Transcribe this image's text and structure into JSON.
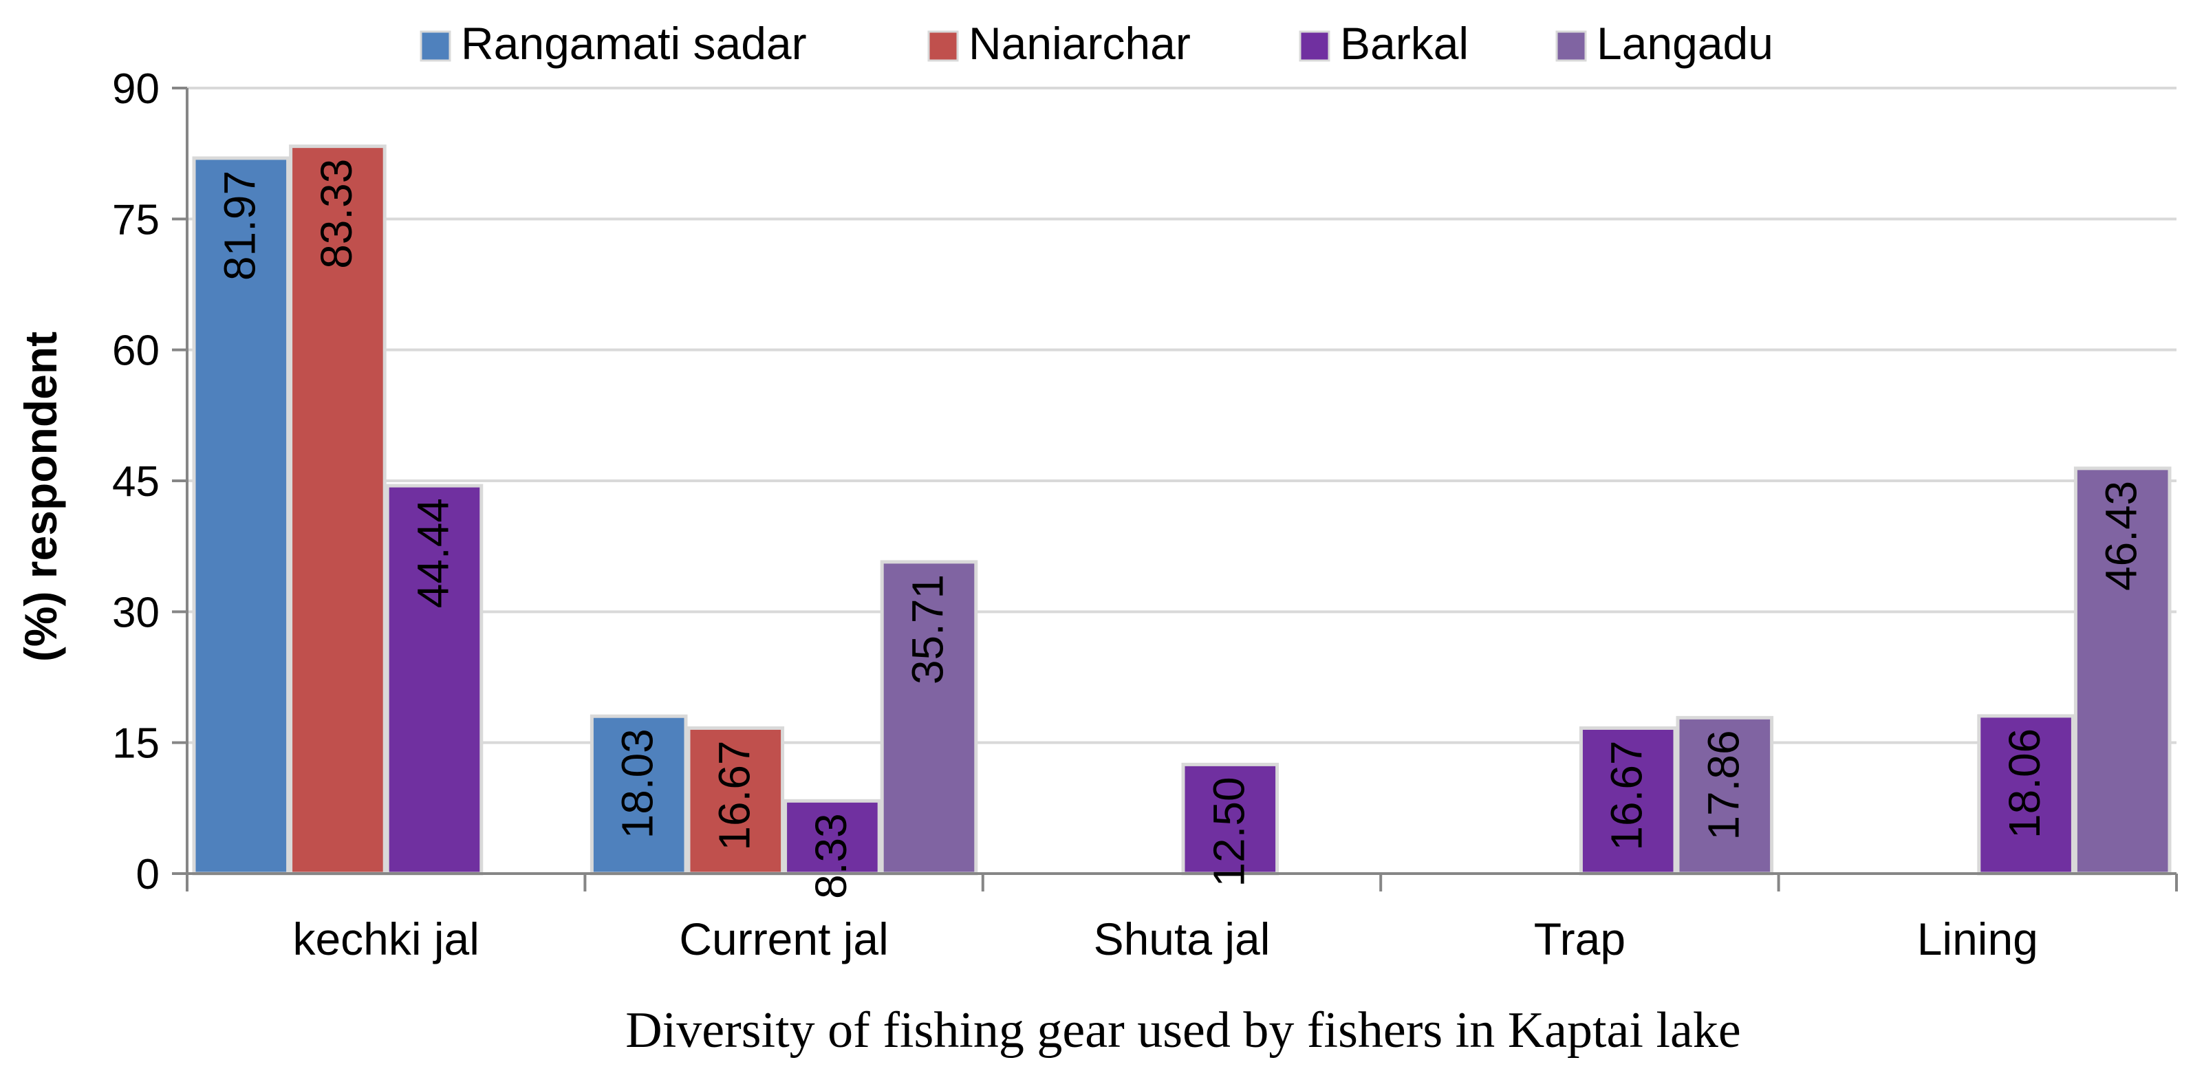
{
  "chart_data": {
    "type": "bar",
    "categories": [
      "kechki jal",
      "Current jal",
      "Shuta jal",
      "Trap",
      "Lining"
    ],
    "series": [
      {
        "name": "Rangamati sadar",
        "color": "#4F81BD",
        "values": [
          81.97,
          18.03,
          null,
          null,
          null
        ]
      },
      {
        "name": "Naniarchar",
        "color": "#C0504D",
        "values": [
          83.33,
          16.67,
          null,
          null,
          null
        ]
      },
      {
        "name": "Barkal",
        "color": "#7030A0",
        "values": [
          44.44,
          8.33,
          12.5,
          16.67,
          18.06
        ]
      },
      {
        "name": "Langadu",
        "color": "#8064A2",
        "values": [
          null,
          35.71,
          null,
          17.86,
          46.43
        ]
      }
    ],
    "data_labels": [
      [
        "81.97",
        "18.03",
        null,
        null,
        null
      ],
      [
        "83.33",
        "16.67",
        null,
        null,
        null
      ],
      [
        "44.44",
        "8.33",
        "12.50",
        "16.67",
        "18.06"
      ],
      [
        null,
        "35.71",
        null,
        "17.86",
        "46.43"
      ]
    ],
    "title": "",
    "xlabel": "Diversity of fishing gear used by fishers in Kaptai lake",
    "ylabel": "(%) respondent",
    "ylim": [
      0,
      90
    ],
    "yticks": [
      "0",
      "15",
      "30",
      "45",
      "60",
      "75",
      "90"
    ],
    "grid": true,
    "legend_position": "top"
  }
}
